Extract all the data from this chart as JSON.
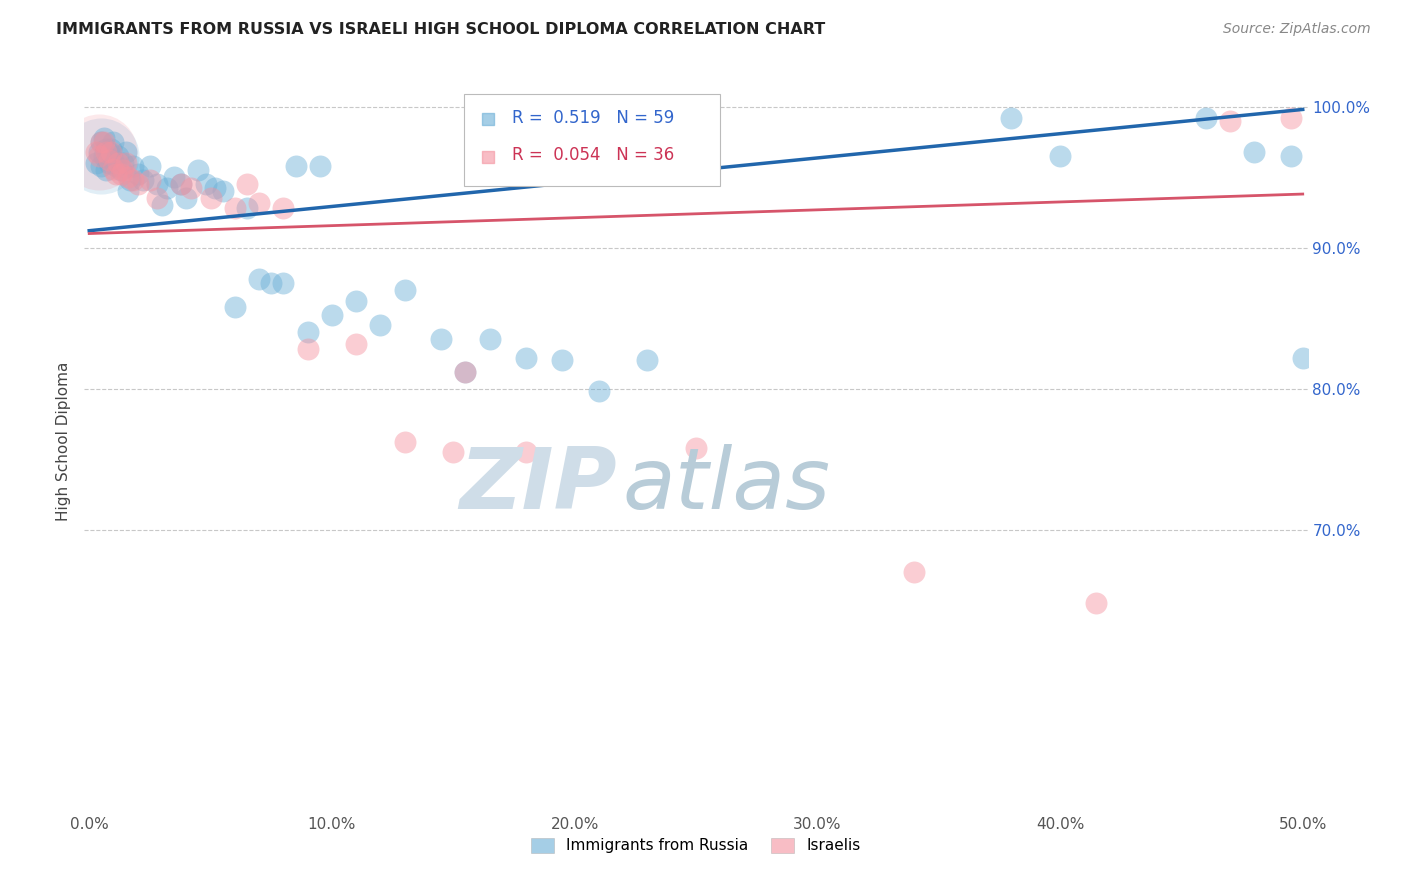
{
  "title": "IMMIGRANTS FROM RUSSIA VS ISRAELI HIGH SCHOOL DIPLOMA CORRELATION CHART",
  "source": "Source: ZipAtlas.com",
  "ylabel": "High School Diploma",
  "x_tick_labels": [
    "0.0%",
    "10.0%",
    "20.0%",
    "30.0%",
    "40.0%",
    "50.0%"
  ],
  "x_tick_vals": [
    0.0,
    0.1,
    0.2,
    0.3,
    0.4,
    0.5
  ],
  "y_tick_labels_right": [
    "100.0%",
    "90.0%",
    "80.0%",
    "70.0%"
  ],
  "y_tick_vals": [
    1.0,
    0.9,
    0.8,
    0.7
  ],
  "xlim": [
    -0.002,
    0.502
  ],
  "ylim": [
    0.5,
    1.025
  ],
  "legend_label_blue": "Immigrants from Russia",
  "legend_label_pink": "Israelis",
  "legend_R_blue": "R=  0.519",
  "legend_N_blue": "N= 59",
  "legend_R_pink": "R=  0.054",
  "legend_N_pink": "N= 36",
  "blue_color": "#6aaed6",
  "pink_color": "#f4929f",
  "blue_line_color": "#2166ac",
  "pink_line_color": "#d6546a",
  "watermark_zip_color": "#cfdde8",
  "watermark_atlas_color": "#b8ccd8",
  "blue_x": [
    0.003,
    0.004,
    0.005,
    0.005,
    0.006,
    0.006,
    0.007,
    0.007,
    0.008,
    0.008,
    0.009,
    0.01,
    0.01,
    0.011,
    0.012,
    0.013,
    0.014,
    0.015,
    0.016,
    0.017,
    0.018,
    0.02,
    0.022,
    0.025,
    0.028,
    0.03,
    0.032,
    0.035,
    0.038,
    0.04,
    0.045,
    0.048,
    0.052,
    0.055,
    0.06,
    0.065,
    0.07,
    0.075,
    0.08,
    0.085,
    0.09,
    0.095,
    0.1,
    0.11,
    0.12,
    0.13,
    0.145,
    0.155,
    0.165,
    0.18,
    0.195,
    0.21,
    0.23,
    0.38,
    0.4,
    0.46,
    0.48,
    0.495,
    0.5
  ],
  "blue_y": [
    0.96,
    0.968,
    0.975,
    0.958,
    0.965,
    0.978,
    0.97,
    0.955,
    0.96,
    0.968,
    0.97,
    0.962,
    0.975,
    0.958,
    0.965,
    0.955,
    0.96,
    0.968,
    0.94,
    0.948,
    0.958,
    0.952,
    0.948,
    0.958,
    0.945,
    0.93,
    0.942,
    0.95,
    0.945,
    0.935,
    0.955,
    0.945,
    0.942,
    0.94,
    0.858,
    0.928,
    0.878,
    0.875,
    0.875,
    0.958,
    0.84,
    0.958,
    0.852,
    0.862,
    0.845,
    0.87,
    0.835,
    0.812,
    0.835,
    0.822,
    0.82,
    0.798,
    0.82,
    0.992,
    0.965,
    0.992,
    0.968,
    0.965,
    0.822
  ],
  "pink_x": [
    0.003,
    0.004,
    0.005,
    0.006,
    0.007,
    0.008,
    0.009,
    0.01,
    0.011,
    0.012,
    0.013,
    0.014,
    0.015,
    0.016,
    0.018,
    0.02,
    0.025,
    0.028,
    0.038,
    0.042,
    0.05,
    0.06,
    0.065,
    0.07,
    0.08,
    0.09,
    0.11,
    0.13,
    0.15,
    0.155,
    0.18,
    0.25,
    0.34,
    0.415,
    0.47,
    0.495
  ],
  "pink_y": [
    0.968,
    0.965,
    0.975,
    0.975,
    0.968,
    0.962,
    0.968,
    0.956,
    0.952,
    0.96,
    0.952,
    0.955,
    0.96,
    0.95,
    0.948,
    0.945,
    0.948,
    0.935,
    0.945,
    0.942,
    0.935,
    0.928,
    0.945,
    0.932,
    0.928,
    0.828,
    0.832,
    0.762,
    0.755,
    0.812,
    0.755,
    0.758,
    0.67,
    0.648,
    0.99,
    0.992
  ],
  "blue_trendline_x": [
    0.0,
    0.5
  ],
  "blue_trendline_y": [
    0.912,
    0.998
  ],
  "pink_trendline_x": [
    0.0,
    0.5
  ],
  "pink_trendline_y": [
    0.91,
    0.938
  ]
}
